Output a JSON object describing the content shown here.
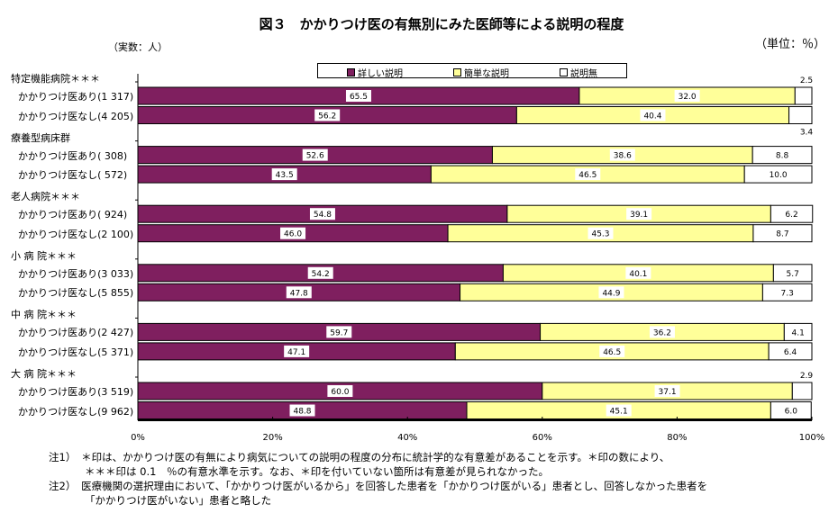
{
  "chart_data": {
    "type": "bar",
    "orientation": "horizontal",
    "stacked": "percent",
    "title": "図３　かかりつけ医の有無別にみた医師等による説明の程度",
    "unit_left": "（実数：人）",
    "unit_right": "（単位：％）",
    "legend": [
      "詳しい説明",
      "簡単な説明",
      "説明無"
    ],
    "legend_position": "top",
    "colors": {
      "詳しい説明": "#7f1f5f",
      "簡単な説明": "#ffff99",
      "説明無": "#ffffff"
    },
    "xlim": [
      0,
      100
    ],
    "x_ticks": [
      "0%",
      "20%",
      "40%",
      "60%",
      "80%",
      "100%"
    ],
    "groups": [
      {
        "label": "特定機能病院＊＊＊",
        "rows": [
          {
            "label": "かかりつけ医あり(1 317)",
            "values": [
              65.5,
              32.0,
              2.5
            ]
          },
          {
            "label": "かかりつけ医なし(4 205)",
            "values": [
              56.2,
              40.4,
              3.4
            ]
          }
        ]
      },
      {
        "label": "療養型病床群",
        "rows": [
          {
            "label": "かかりつけ医あり(  308)",
            "values": [
              52.6,
              38.6,
              8.8
            ]
          },
          {
            "label": "かかりつけ医なし(  572)",
            "values": [
              43.5,
              46.5,
              10.0
            ]
          }
        ]
      },
      {
        "label": "老人病院＊＊＊",
        "rows": [
          {
            "label": "かかりつけ医あり(  924)",
            "values": [
              54.8,
              39.1,
              6.2
            ]
          },
          {
            "label": "かかりつけ医なし(2 100)",
            "values": [
              46.0,
              45.3,
              8.7
            ]
          }
        ]
      },
      {
        "label": "小 病 院＊＊＊",
        "rows": [
          {
            "label": "かかりつけ医あり(3 033)",
            "values": [
              54.2,
              40.1,
              5.7
            ]
          },
          {
            "label": "かかりつけ医なし(5 855)",
            "values": [
              47.8,
              44.9,
              7.3
            ]
          }
        ]
      },
      {
        "label": "中 病 院＊＊＊",
        "rows": [
          {
            "label": "かかりつけ医あり(2 427)",
            "values": [
              59.7,
              36.2,
              4.1
            ]
          },
          {
            "label": "かかりつけ医なし(5 371)",
            "values": [
              47.1,
              46.5,
              6.4
            ]
          }
        ]
      },
      {
        "label": "大 病 院＊＊＊",
        "rows": [
          {
            "label": "かかりつけ医あり(3 519)",
            "values": [
              60.0,
              37.1,
              2.9
            ]
          },
          {
            "label": "かかりつけ医なし(9 962)",
            "values": [
              48.8,
              45.1,
              6.0
            ]
          }
        ]
      }
    ]
  },
  "footnotes": [
    "注1）　＊印は、かかりつけ医の有無により病気についての説明の程度の分布に統計学的な有意差があることを示す。＊印の数により、",
    "＊＊＊印は 0.1　％の有意水準を示す。なお、＊印を付いていない箇所は有意差が見られなかった。",
    "注2）　医療機関の選択理由において、「かかりつけ医がいるから」を回答した患者を「かかりつけ医がいる」患者とし、回答しなかった患者を",
    "「かかりつけ医がいない」患者と略した"
  ]
}
